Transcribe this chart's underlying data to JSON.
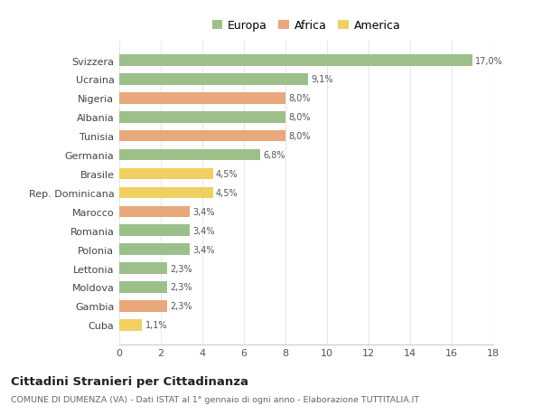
{
  "categories": [
    "Svizzera",
    "Ucraina",
    "Nigeria",
    "Albania",
    "Tunisia",
    "Germania",
    "Brasile",
    "Rep. Dominicana",
    "Marocco",
    "Romania",
    "Polonia",
    "Lettonia",
    "Moldova",
    "Gambia",
    "Cuba"
  ],
  "values": [
    17.0,
    9.1,
    8.0,
    8.0,
    8.0,
    6.8,
    4.5,
    4.5,
    3.4,
    3.4,
    3.4,
    2.3,
    2.3,
    2.3,
    1.1
  ],
  "labels": [
    "17,0%",
    "9,1%",
    "8,0%",
    "8,0%",
    "8,0%",
    "6,8%",
    "4,5%",
    "4,5%",
    "3,4%",
    "3,4%",
    "3,4%",
    "2,3%",
    "2,3%",
    "2,3%",
    "1,1%"
  ],
  "continent": [
    "Europa",
    "Europa",
    "Africa",
    "Europa",
    "Africa",
    "Europa",
    "America",
    "America",
    "Africa",
    "Europa",
    "Europa",
    "Europa",
    "Europa",
    "Africa",
    "America"
  ],
  "colors": {
    "Europa": "#9dc08b",
    "Africa": "#e8a87c",
    "America": "#f0d060"
  },
  "xlim": [
    0,
    18
  ],
  "xticks": [
    0,
    2,
    4,
    6,
    8,
    10,
    12,
    14,
    16,
    18
  ],
  "title": "Cittadini Stranieri per Cittadinanza",
  "subtitle": "COMUNE DI DUMENZA (VA) - Dati ISTAT al 1° gennaio di ogni anno - Elaborazione TUTTITALIA.IT",
  "background_color": "#ffffff",
  "grid_color": "#e8e8e8",
  "bar_height": 0.6
}
